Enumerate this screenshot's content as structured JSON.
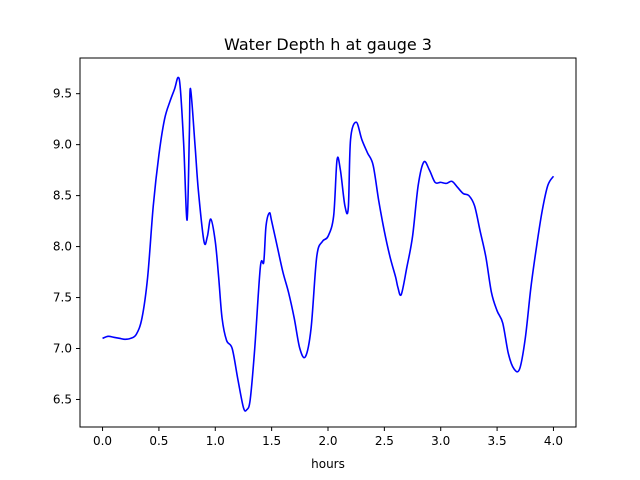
{
  "chart_data": {
    "type": "line",
    "title": "Water Depth h at gauge 3",
    "xlabel": "hours",
    "ylabel": "",
    "xlim": [
      -0.2,
      4.2
    ],
    "ylim": [
      6.23,
      9.85
    ],
    "xticks": [
      "0.0",
      "0.5",
      "1.0",
      "1.5",
      "2.0",
      "2.5",
      "3.0",
      "3.5",
      "4.0"
    ],
    "yticks": [
      "6.5",
      "7.0",
      "7.5",
      "8.0",
      "8.5",
      "9.0",
      "9.5"
    ],
    "grid": false,
    "legend": "none",
    "series": [
      {
        "color": "#0000ff",
        "points": [
          [
            0.0,
            7.1
          ],
          [
            0.05,
            7.12
          ],
          [
            0.1,
            7.11
          ],
          [
            0.15,
            7.1
          ],
          [
            0.2,
            7.09
          ],
          [
            0.25,
            7.1
          ],
          [
            0.3,
            7.14
          ],
          [
            0.35,
            7.3
          ],
          [
            0.4,
            7.7
          ],
          [
            0.45,
            8.4
          ],
          [
            0.5,
            8.9
          ],
          [
            0.55,
            9.25
          ],
          [
            0.6,
            9.43
          ],
          [
            0.64,
            9.55
          ],
          [
            0.67,
            9.66
          ],
          [
            0.69,
            9.55
          ],
          [
            0.72,
            9.0
          ],
          [
            0.75,
            8.26
          ],
          [
            0.77,
            9.1
          ],
          [
            0.78,
            9.55
          ],
          [
            0.82,
            9.0
          ],
          [
            0.85,
            8.55
          ],
          [
            0.9,
            8.05
          ],
          [
            0.93,
            8.1
          ],
          [
            0.96,
            8.27
          ],
          [
            1.0,
            8.05
          ],
          [
            1.03,
            7.7
          ],
          [
            1.06,
            7.3
          ],
          [
            1.1,
            7.08
          ],
          [
            1.15,
            7.0
          ],
          [
            1.2,
            6.7
          ],
          [
            1.25,
            6.42
          ],
          [
            1.28,
            6.4
          ],
          [
            1.31,
            6.5
          ],
          [
            1.35,
            7.0
          ],
          [
            1.4,
            7.8
          ],
          [
            1.43,
            7.85
          ],
          [
            1.45,
            8.2
          ],
          [
            1.48,
            8.33
          ],
          [
            1.5,
            8.25
          ],
          [
            1.55,
            8.0
          ],
          [
            1.6,
            7.75
          ],
          [
            1.65,
            7.55
          ],
          [
            1.7,
            7.3
          ],
          [
            1.75,
            7.0
          ],
          [
            1.8,
            6.92
          ],
          [
            1.85,
            7.2
          ],
          [
            1.9,
            7.9
          ],
          [
            1.95,
            8.05
          ],
          [
            2.0,
            8.1
          ],
          [
            2.05,
            8.3
          ],
          [
            2.08,
            8.85
          ],
          [
            2.11,
            8.75
          ],
          [
            2.15,
            8.4
          ],
          [
            2.18,
            8.38
          ],
          [
            2.2,
            9.05
          ],
          [
            2.25,
            9.22
          ],
          [
            2.3,
            9.05
          ],
          [
            2.35,
            8.92
          ],
          [
            2.4,
            8.8
          ],
          [
            2.45,
            8.45
          ],
          [
            2.5,
            8.15
          ],
          [
            2.55,
            7.9
          ],
          [
            2.6,
            7.7
          ],
          [
            2.62,
            7.6
          ],
          [
            2.65,
            7.53
          ],
          [
            2.7,
            7.8
          ],
          [
            2.75,
            8.1
          ],
          [
            2.8,
            8.6
          ],
          [
            2.85,
            8.83
          ],
          [
            2.9,
            8.75
          ],
          [
            2.95,
            8.63
          ],
          [
            3.0,
            8.63
          ],
          [
            3.05,
            8.62
          ],
          [
            3.1,
            8.64
          ],
          [
            3.15,
            8.58
          ],
          [
            3.2,
            8.52
          ],
          [
            3.25,
            8.5
          ],
          [
            3.3,
            8.4
          ],
          [
            3.35,
            8.15
          ],
          [
            3.4,
            7.9
          ],
          [
            3.45,
            7.55
          ],
          [
            3.5,
            7.37
          ],
          [
            3.55,
            7.25
          ],
          [
            3.6,
            6.95
          ],
          [
            3.65,
            6.8
          ],
          [
            3.7,
            6.8
          ],
          [
            3.75,
            7.1
          ],
          [
            3.8,
            7.6
          ],
          [
            3.85,
            8.0
          ],
          [
            3.9,
            8.35
          ],
          [
            3.95,
            8.6
          ],
          [
            4.0,
            8.69
          ]
        ]
      }
    ]
  }
}
